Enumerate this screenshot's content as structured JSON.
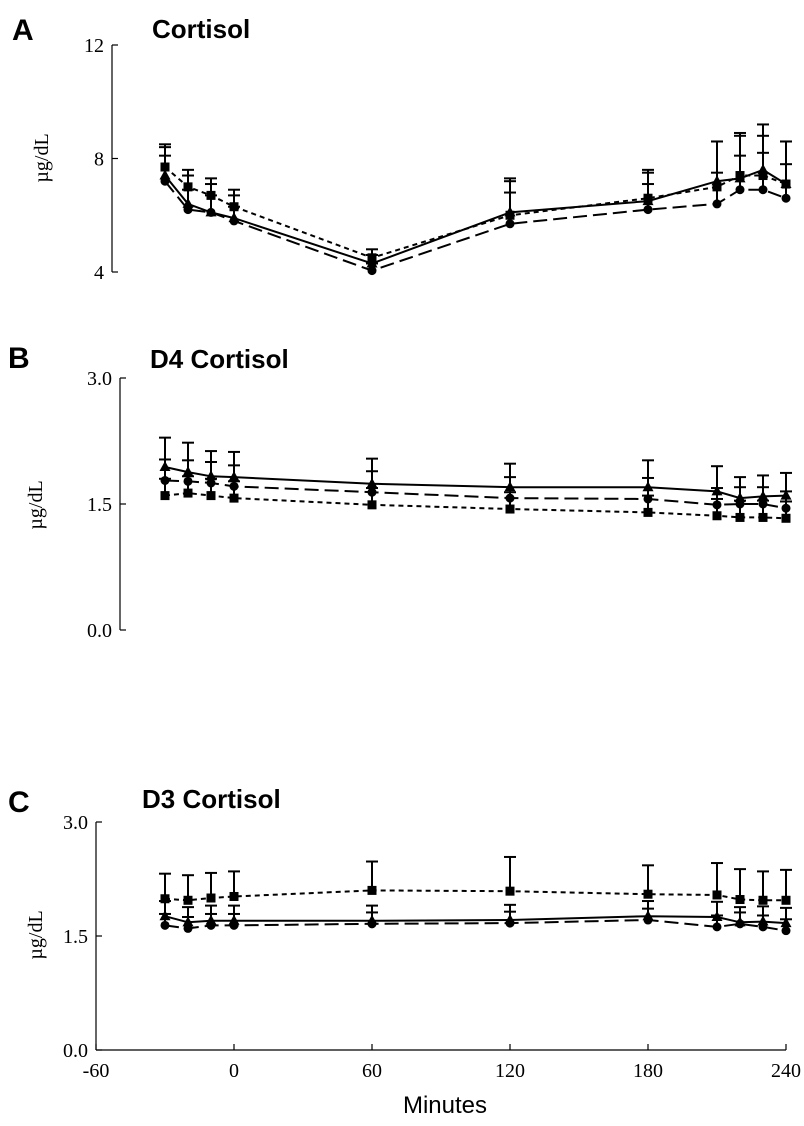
{
  "figure": {
    "xlabel": "Minutes",
    "xlim": [
      -60,
      240
    ],
    "xticks": [
      "-60",
      "0",
      "60",
      "120",
      "180",
      "240"
    ]
  },
  "chart_data": [
    {
      "type": "line",
      "panel": "A",
      "title": "Cortisol",
      "ylabel": "µg/dL",
      "ylim": [
        4,
        12
      ],
      "yticks": [
        "4",
        "8",
        "12"
      ],
      "x": [
        -30,
        -20,
        -10,
        0,
        60,
        120,
        180,
        210,
        220,
        230,
        240
      ],
      "series": [
        {
          "marker": "triangle",
          "line_style": "solid",
          "values": [
            7.4,
            6.4,
            6.1,
            5.9,
            4.3,
            6.1,
            6.5,
            7.2,
            7.3,
            7.6,
            7.1
          ],
          "error": [
            1.0,
            1.0,
            1.0,
            0.8,
            0.3,
            1.2,
            1.0,
            1.4,
            1.5,
            1.6,
            1.5
          ]
        },
        {
          "marker": "circle",
          "line_style": "long-dash",
          "values": [
            7.2,
            6.2,
            6.1,
            5.8,
            4.05,
            5.7,
            6.2,
            6.4,
            6.9,
            6.9,
            6.6
          ],
          "error": [
            0.9,
            0.7,
            0.6,
            0.5,
            0.25,
            1.1,
            0.9,
            1.1,
            1.2,
            1.3,
            1.2
          ]
        },
        {
          "marker": "square",
          "line_style": "short-dash",
          "values": [
            7.7,
            7.0,
            6.7,
            6.3,
            4.5,
            6.0,
            6.6,
            7.0,
            7.4,
            7.4,
            7.1
          ],
          "error": [
            0.8,
            0.6,
            0.6,
            0.6,
            0.3,
            1.2,
            1.0,
            1.6,
            1.5,
            1.4,
            1.5
          ]
        }
      ]
    },
    {
      "type": "line",
      "panel": "B",
      "title": "D4 Cortisol",
      "ylabel": "µg/dL",
      "ylim": [
        0.0,
        3.0
      ],
      "yticks": [
        "0.0",
        "1.5",
        "3.0"
      ],
      "x": [
        -30,
        -20,
        -10,
        0,
        60,
        120,
        180,
        210,
        220,
        230,
        240
      ],
      "series": [
        {
          "marker": "triangle",
          "line_style": "solid",
          "values": [
            1.94,
            1.88,
            1.83,
            1.82,
            1.74,
            1.7,
            1.7,
            1.65,
            1.57,
            1.59,
            1.6
          ],
          "error": [
            0.35,
            0.35,
            0.3,
            0.3,
            0.3,
            0.28,
            0.32,
            0.3,
            0.25,
            0.25,
            0.27
          ]
        },
        {
          "marker": "circle",
          "line_style": "long-dash",
          "values": [
            1.78,
            1.77,
            1.75,
            1.71,
            1.64,
            1.57,
            1.56,
            1.49,
            1.5,
            1.5,
            1.45
          ],
          "error": [
            0.25,
            0.25,
            0.25,
            0.25,
            0.25,
            0.25,
            0.25,
            0.2,
            0.2,
            0.2,
            0.2
          ]
        },
        {
          "marker": "square",
          "line_style": "short-dash",
          "values": [
            1.6,
            1.63,
            1.6,
            1.57,
            1.49,
            1.44,
            1.4,
            1.36,
            1.34,
            1.34,
            1.33
          ],
          "error": [
            0.2,
            0.2,
            0.2,
            0.2,
            0.2,
            0.2,
            0.2,
            0.2,
            0.2,
            0.2,
            0.2
          ]
        }
      ]
    },
    {
      "type": "line",
      "panel": "C",
      "title": "D3 Cortisol",
      "ylabel": "µg/dL",
      "ylim": [
        0.0,
        3.0
      ],
      "yticks": [
        "0.0",
        "1.5",
        "3.0"
      ],
      "x": [
        -30,
        -20,
        -10,
        0,
        60,
        120,
        180,
        210,
        220,
        230,
        240
      ],
      "series": [
        {
          "marker": "triangle",
          "line_style": "solid",
          "values": [
            1.76,
            1.68,
            1.7,
            1.7,
            1.7,
            1.71,
            1.76,
            1.75,
            1.68,
            1.69,
            1.67
          ],
          "error": [
            0.2,
            0.2,
            0.2,
            0.2,
            0.2,
            0.2,
            0.2,
            0.2,
            0.2,
            0.2,
            0.2
          ]
        },
        {
          "marker": "circle",
          "line_style": "long-dash",
          "values": [
            1.64,
            1.6,
            1.64,
            1.64,
            1.66,
            1.67,
            1.71,
            1.62,
            1.66,
            1.62,
            1.57
          ],
          "error": [
            0.15,
            0.15,
            0.15,
            0.15,
            0.15,
            0.15,
            0.15,
            0.15,
            0.15,
            0.15,
            0.15
          ]
        },
        {
          "marker": "square",
          "line_style": "short-dash",
          "values": [
            1.99,
            1.97,
            2.0,
            2.02,
            2.1,
            2.09,
            2.05,
            2.04,
            1.98,
            1.97,
            1.97
          ],
          "error": [
            0.33,
            0.33,
            0.33,
            0.33,
            0.38,
            0.45,
            0.38,
            0.42,
            0.4,
            0.38,
            0.4
          ]
        }
      ]
    }
  ]
}
